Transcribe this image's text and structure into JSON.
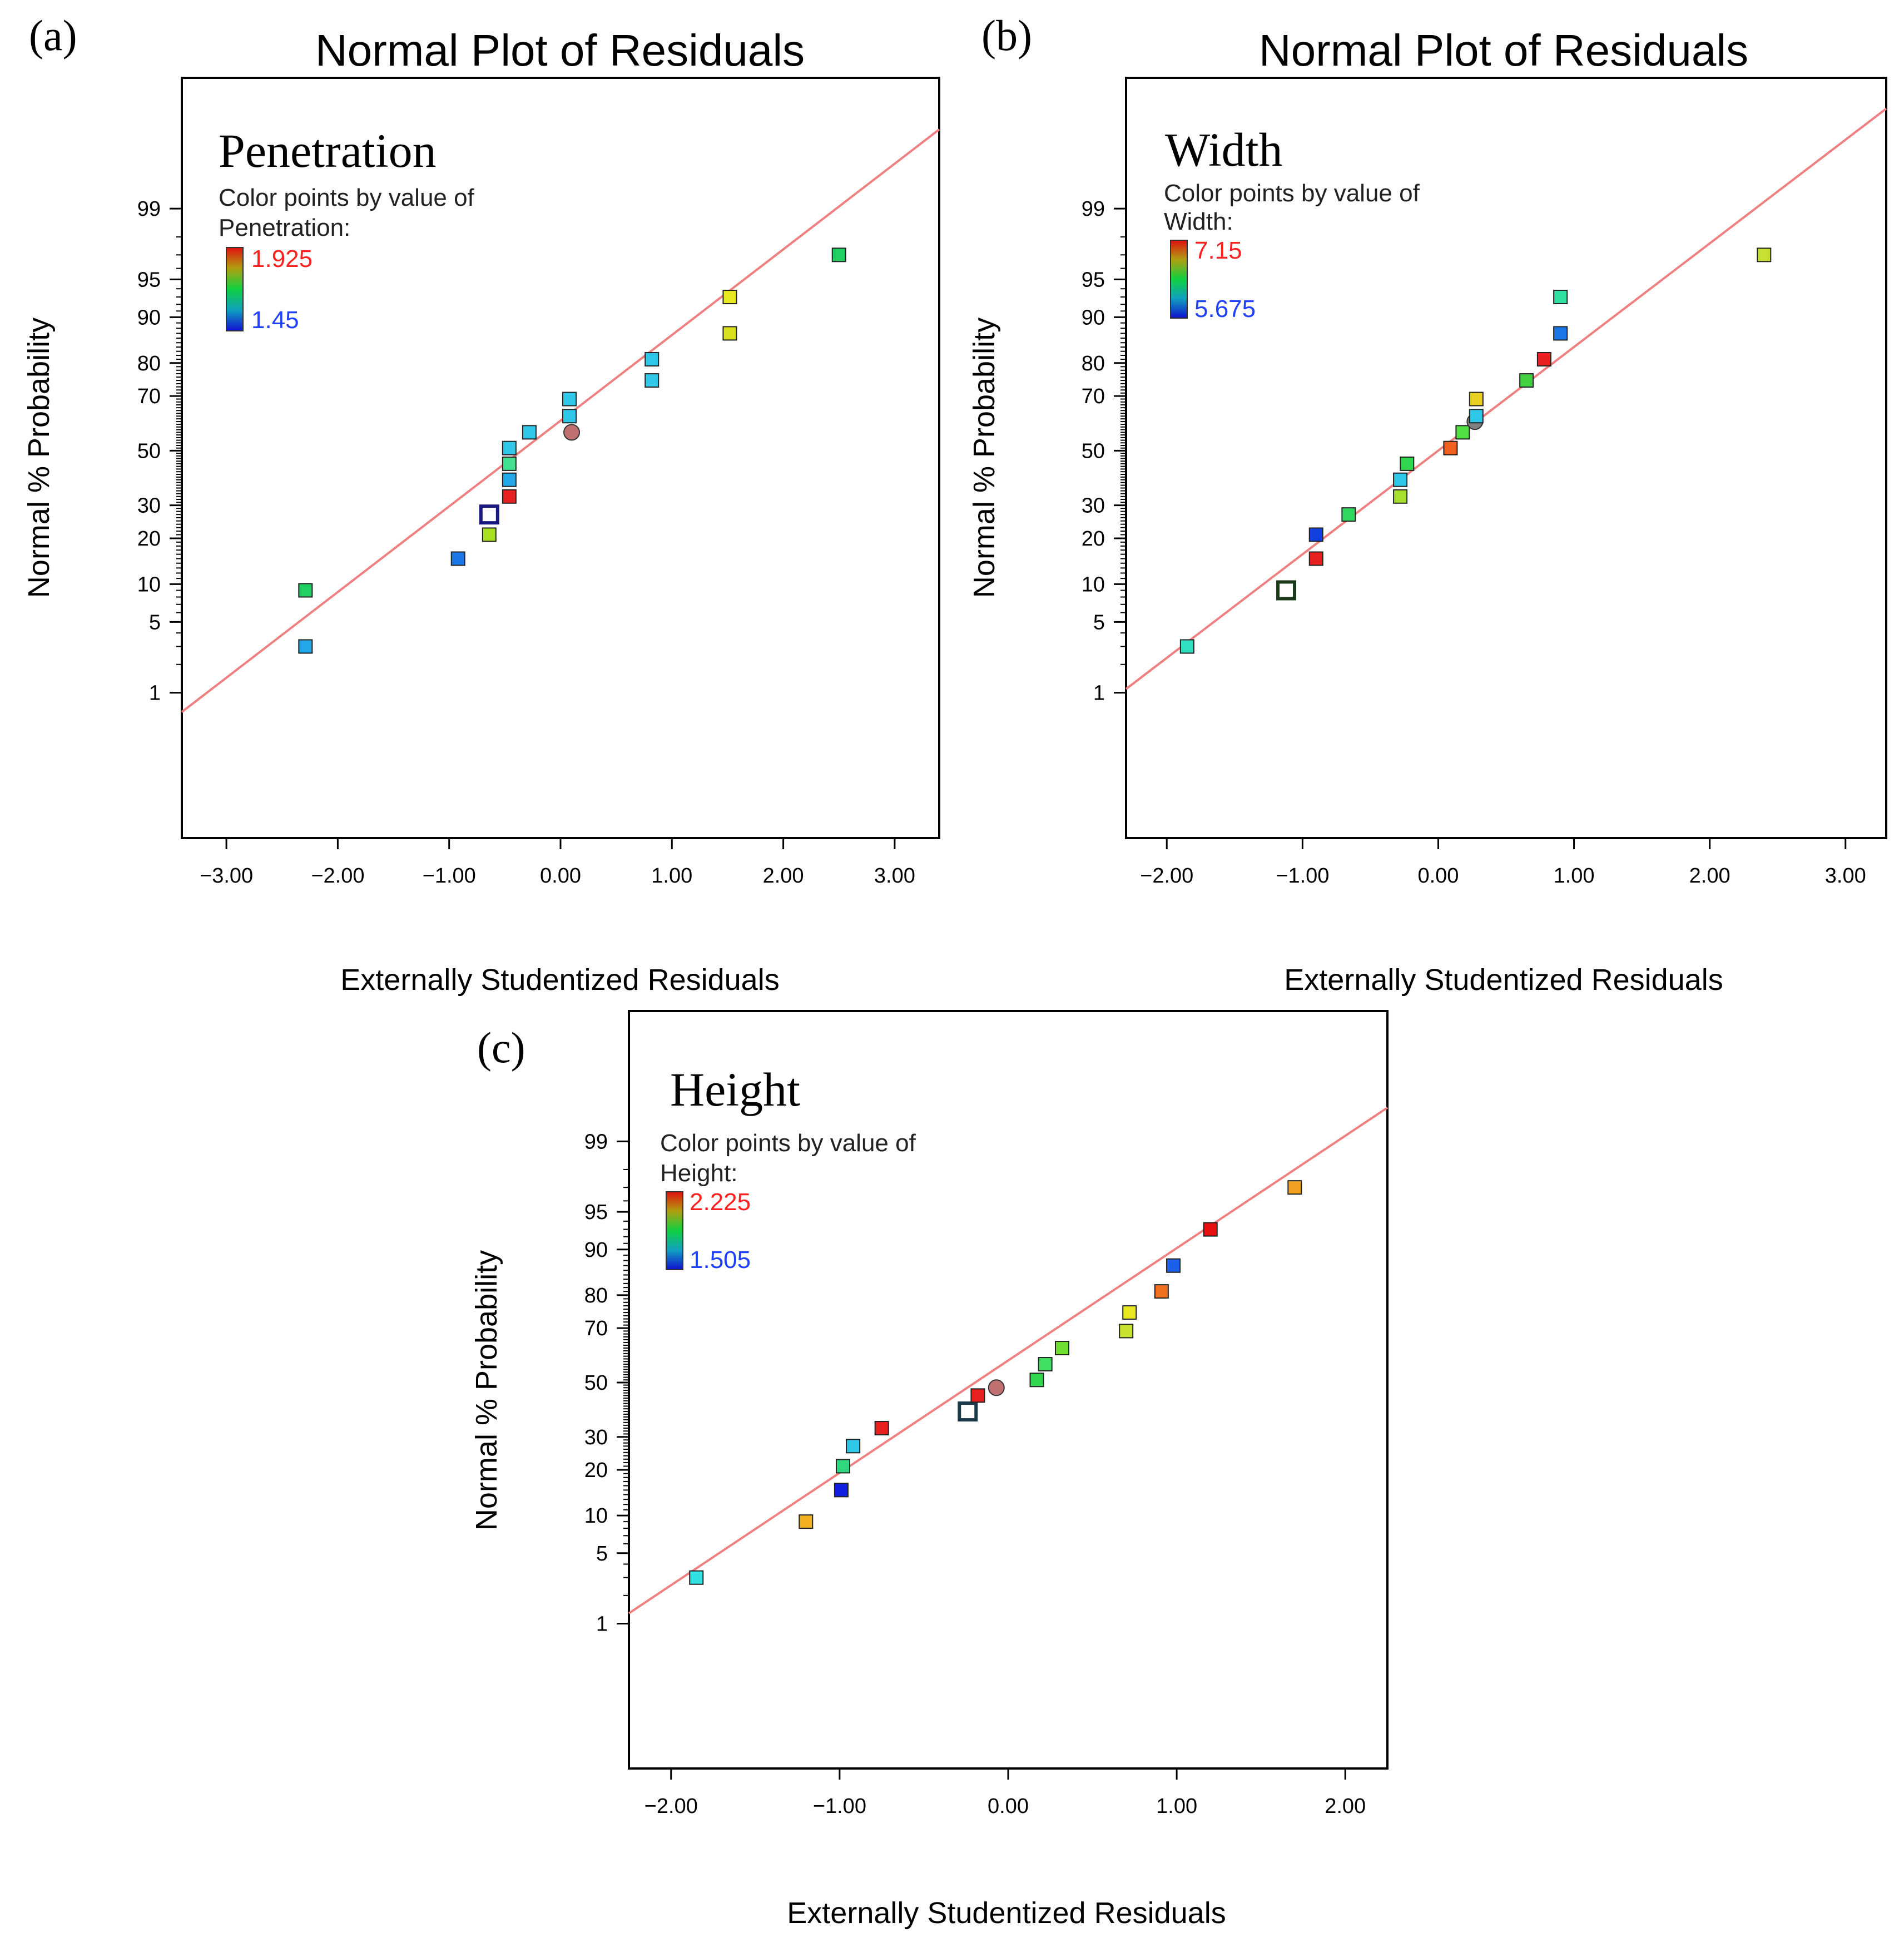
{
  "figure": {
    "panels": [
      {
        "letter": "(a)",
        "title": "Normal Plot of Residuals",
        "annotation": "Penetration",
        "legend_line1": "Color points by value of",
        "legend_line2": "Penetration:",
        "legend_high": "1.925",
        "legend_low": "1.45"
      },
      {
        "letter": "(b)",
        "title": "Normal Plot of Residuals",
        "annotation": "Width",
        "legend_line1": "Color points by value of",
        "legend_line2": "Width:",
        "legend_high": "7.15",
        "legend_low": "5.675"
      },
      {
        "letter": "(c)",
        "title": "",
        "annotation": "Height",
        "legend_line1": "Color points by value of",
        "legend_line2": "Height:",
        "legend_high": "2.225",
        "legend_low": "1.505"
      }
    ]
  },
  "chart_data": [
    {
      "type": "scatter",
      "title": "Normal Plot of Residuals",
      "annotation": "Penetration",
      "xlabel": "Externally Studentized Residuals",
      "ylabel": "Normal % Probability",
      "xlim": [
        -3.4,
        3.4
      ],
      "x_ticks": [
        -3,
        -2,
        -1,
        0,
        1,
        2,
        3
      ],
      "x_tick_labels": [
        "−3.00",
        "−2.00",
        "−1.00",
        "0.00",
        "1.00",
        "2.00",
        "3.00"
      ],
      "y_ticks": [
        1,
        5,
        10,
        20,
        30,
        50,
        70,
        80,
        90,
        95,
        99
      ],
      "y_tick_labels": [
        "1",
        "5",
        "10",
        "20",
        "30",
        "50",
        "70",
        "80",
        "90",
        "95",
        "99"
      ],
      "reference_line": {
        "x": [
          -3.4,
          3.4
        ],
        "p": [
          0.6,
          99.9
        ]
      },
      "color_scale": {
        "min": 1.45,
        "max": 1.925
      },
      "points": [
        {
          "x": -2.29,
          "p": 3,
          "color": "#20a8e8"
        },
        {
          "x": -2.29,
          "p": 9,
          "color": "#20d060"
        },
        {
          "x": -0.92,
          "p": 15,
          "color": "#1a78e8"
        },
        {
          "x": -0.64,
          "p": 21,
          "color": "#a8e020"
        },
        {
          "x": -0.64,
          "p": 27,
          "color": "#ffffff",
          "stroke": "#1a1a80",
          "hollow": true
        },
        {
          "x": -0.46,
          "p": 33,
          "color": "#e82020"
        },
        {
          "x": -0.46,
          "p": 39,
          "color": "#20a8e8"
        },
        {
          "x": -0.46,
          "p": 45,
          "color": "#40e090"
        },
        {
          "x": -0.46,
          "p": 51,
          "color": "#30c8e8"
        },
        {
          "x": -0.28,
          "p": 57,
          "color": "#30c8e8"
        },
        {
          "x": 0.08,
          "p": 63,
          "color": "#30c8e8"
        },
        {
          "x": 0.08,
          "p": 69,
          "color": "#30c8e8"
        },
        {
          "x": 0.1,
          "p": 57,
          "color": "#c07070",
          "shape": "circle"
        },
        {
          "x": 0.82,
          "p": 75,
          "color": "#30c8e8"
        },
        {
          "x": 0.82,
          "p": 81,
          "color": "#30c8e8"
        },
        {
          "x": 1.52,
          "p": 87,
          "color": "#d8e020"
        },
        {
          "x": 1.52,
          "p": 93,
          "color": "#e8e820"
        },
        {
          "x": 2.5,
          "p": 97,
          "color": "#20d060"
        }
      ]
    },
    {
      "type": "scatter",
      "title": "Normal Plot of Residuals",
      "annotation": "Width",
      "xlabel": "Externally Studentized Residuals",
      "ylabel": "Normal % Probability",
      "xlim": [
        -2.3,
        3.3
      ],
      "x_ticks": [
        -2,
        -1,
        0,
        1,
        2,
        3
      ],
      "x_tick_labels": [
        "−2.00",
        "−1.00",
        "0.00",
        "1.00",
        "2.00",
        "3.00"
      ],
      "y_ticks": [
        1,
        5,
        10,
        20,
        30,
        50,
        70,
        80,
        90,
        95,
        99
      ],
      "y_tick_labels": [
        "1",
        "5",
        "10",
        "20",
        "30",
        "50",
        "70",
        "80",
        "90",
        "95",
        "99"
      ],
      "reference_line": {
        "x": [
          -2.3,
          3.3
        ],
        "p": [
          1.1,
          99.95
        ]
      },
      "color_scale": {
        "min": 5.675,
        "max": 7.15
      },
      "points": [
        {
          "x": -1.85,
          "p": 3,
          "color": "#30e0c0"
        },
        {
          "x": -1.12,
          "p": 9,
          "color": "#ffffff",
          "stroke": "#1a3a1a",
          "hollow": true
        },
        {
          "x": -0.9,
          "p": 15,
          "color": "#e82020"
        },
        {
          "x": -0.9,
          "p": 21,
          "color": "#1040e0"
        },
        {
          "x": -0.66,
          "p": 27,
          "color": "#30d860"
        },
        {
          "x": -0.28,
          "p": 33,
          "color": "#a8e030"
        },
        {
          "x": -0.28,
          "p": 39,
          "color": "#30c8e8"
        },
        {
          "x": -0.23,
          "p": 45,
          "color": "#30d850"
        },
        {
          "x": 0.09,
          "p": 51,
          "color": "#f06020"
        },
        {
          "x": 0.18,
          "p": 57,
          "color": "#50e040"
        },
        {
          "x": 0.27,
          "p": 61,
          "color": "#808080",
          "shape": "circle"
        },
        {
          "x": 0.28,
          "p": 63,
          "color": "#30c8e8"
        },
        {
          "x": 0.28,
          "p": 69,
          "color": "#e8d020"
        },
        {
          "x": 0.65,
          "p": 75,
          "color": "#40d040"
        },
        {
          "x": 0.78,
          "p": 81,
          "color": "#e82020"
        },
        {
          "x": 0.9,
          "p": 87,
          "color": "#1a78e8"
        },
        {
          "x": 0.9,
          "p": 93,
          "color": "#30e0a0"
        },
        {
          "x": 2.4,
          "p": 97,
          "color": "#c8e030"
        }
      ]
    },
    {
      "type": "scatter",
      "title": "",
      "annotation": "Height",
      "xlabel": "Externally Studentized Residuals",
      "ylabel": "Normal % Probability",
      "xlim": [
        -2.25,
        2.25
      ],
      "x_ticks": [
        -2,
        -1,
        0,
        1,
        2
      ],
      "x_tick_labels": [
        "−2.00",
        "−1.00",
        "0.00",
        "1.00",
        "2.00"
      ],
      "y_ticks": [
        1,
        5,
        10,
        20,
        30,
        50,
        70,
        80,
        90,
        95,
        99
      ],
      "y_tick_labels": [
        "1",
        "5",
        "10",
        "20",
        "30",
        "50",
        "70",
        "80",
        "90",
        "95",
        "99"
      ],
      "reference_line": {
        "x": [
          -2.25,
          2.25
        ],
        "p": [
          1.3,
          99.6
        ]
      },
      "color_scale": {
        "min": 1.505,
        "max": 2.225
      },
      "points": [
        {
          "x": -1.85,
          "p": 3,
          "color": "#30e0e0"
        },
        {
          "x": -1.2,
          "p": 9,
          "color": "#f0b020"
        },
        {
          "x": -0.99,
          "p": 15,
          "color": "#1020e0"
        },
        {
          "x": -0.98,
          "p": 21,
          "color": "#30d880"
        },
        {
          "x": -0.92,
          "p": 27,
          "color": "#30c8e8"
        },
        {
          "x": -0.75,
          "p": 33,
          "color": "#e82020"
        },
        {
          "x": -0.24,
          "p": 39,
          "color": "#ffffff",
          "stroke": "#1a3a4a",
          "hollow": true
        },
        {
          "x": -0.18,
          "p": 45,
          "color": "#e82020"
        },
        {
          "x": -0.07,
          "p": 48,
          "color": "#c07070",
          "shape": "circle"
        },
        {
          "x": 0.17,
          "p": 51,
          "color": "#30d850"
        },
        {
          "x": 0.22,
          "p": 57,
          "color": "#40e060"
        },
        {
          "x": 0.32,
          "p": 63,
          "color": "#70e030"
        },
        {
          "x": 0.7,
          "p": 69,
          "color": "#c8e030"
        },
        {
          "x": 0.72,
          "p": 75,
          "color": "#e8e820"
        },
        {
          "x": 0.91,
          "p": 81,
          "color": "#f07020"
        },
        {
          "x": 0.98,
          "p": 87,
          "color": "#1a60e8"
        },
        {
          "x": 1.2,
          "p": 93,
          "color": "#e81010"
        },
        {
          "x": 1.7,
          "p": 97,
          "color": "#f0a020"
        }
      ]
    }
  ]
}
